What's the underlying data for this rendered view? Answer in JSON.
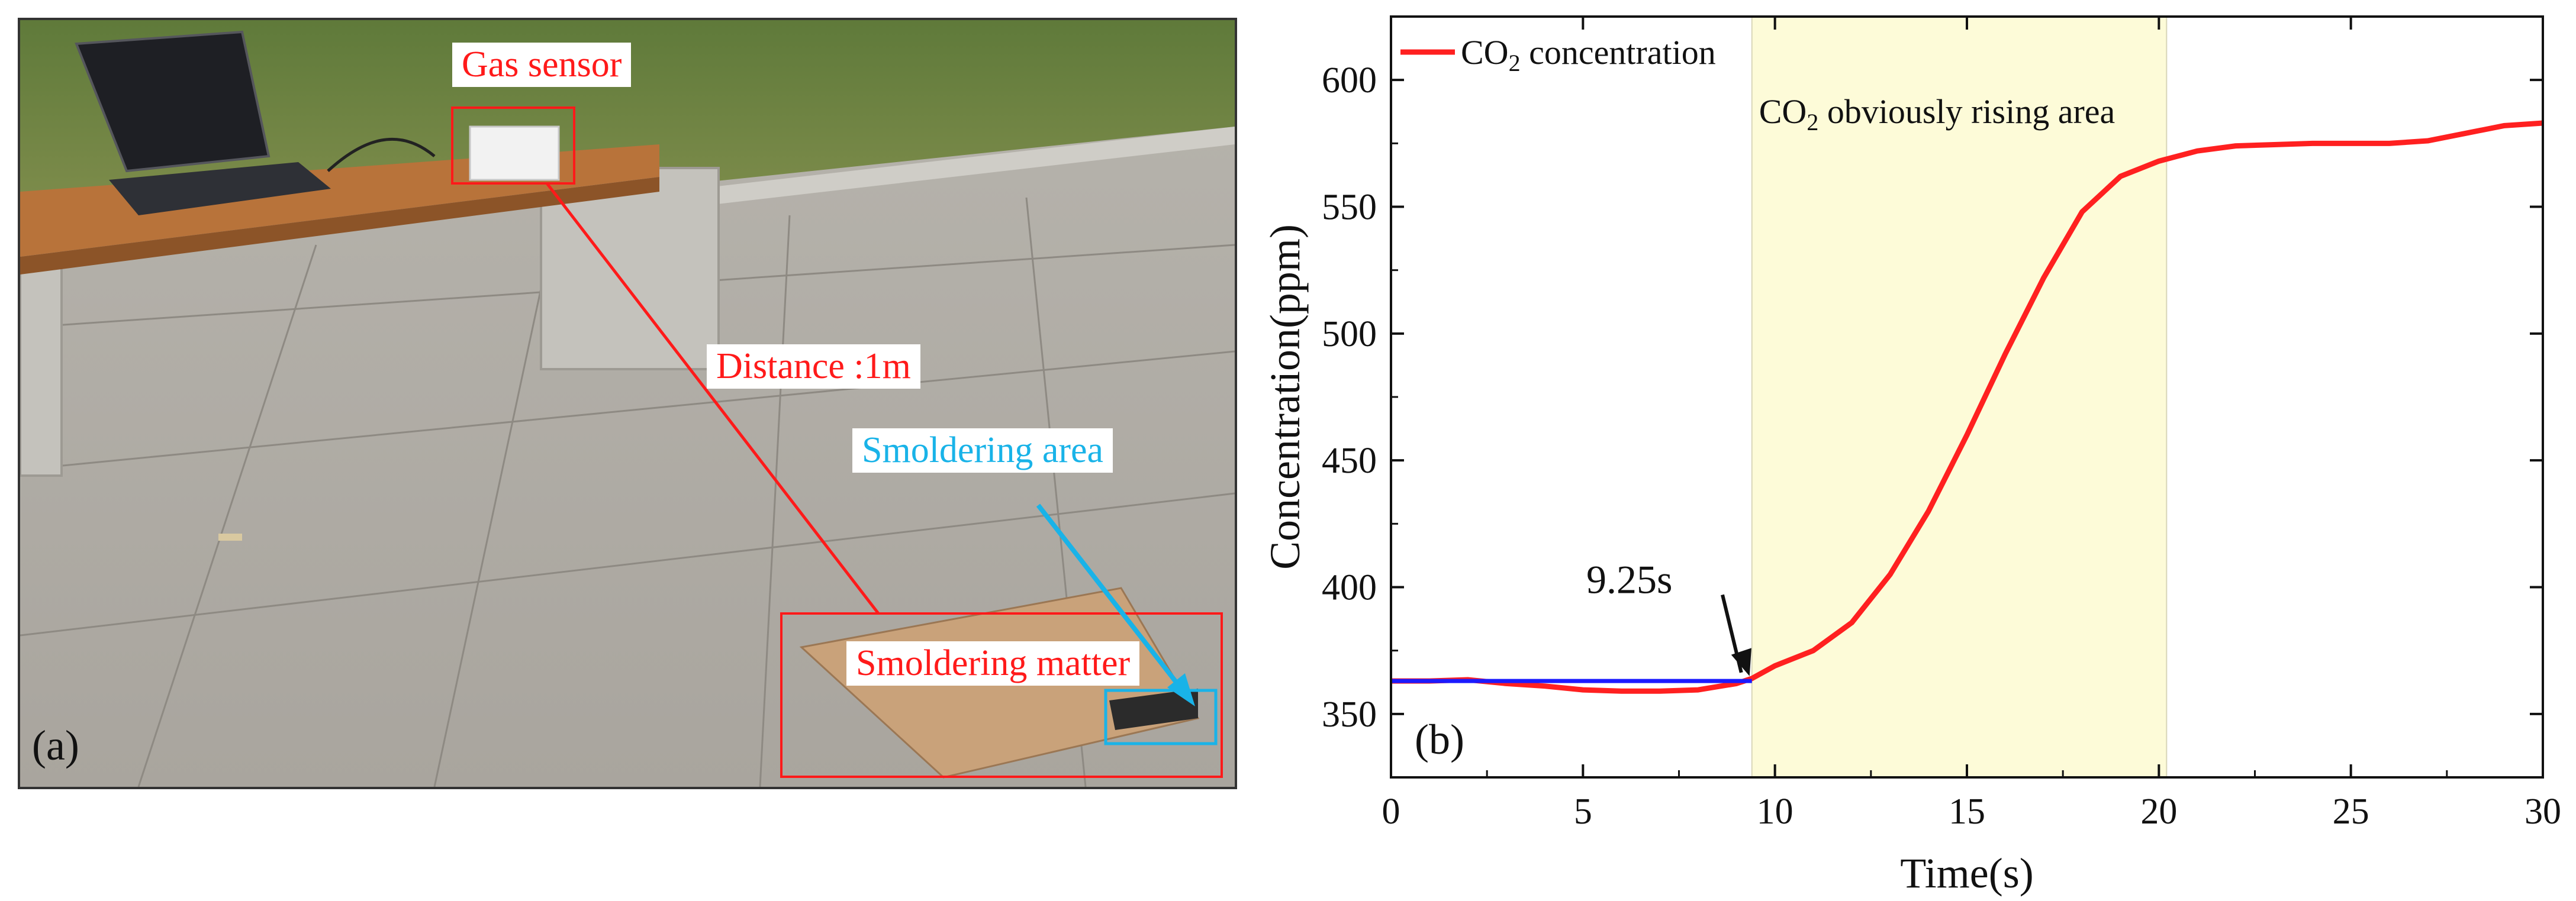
{
  "panel_a": {
    "label": "(a)",
    "annotations": {
      "gas_sensor": "Gas sensor",
      "distance": "Distance :1m",
      "smoldering_area": "Smoldering area",
      "smoldering_matter": "Smoldering matter"
    }
  },
  "panel_b": {
    "label": "(b)"
  },
  "colors": {
    "co2_line": "#ff2020",
    "baseline": "#1a1aff",
    "highlight": "#fdfbd8",
    "label_red": "#ff1a1a",
    "label_blue": "#19b3e8"
  },
  "chart_data": {
    "type": "line",
    "xlabel": "Time(s)",
    "ylabel": "Concentration(ppm)",
    "xlim": [
      0,
      30
    ],
    "ylim": [
      325,
      625
    ],
    "xticks": [
      0,
      5,
      10,
      15,
      20,
      25,
      30
    ],
    "yticks": [
      350,
      400,
      450,
      500,
      550,
      600
    ],
    "legend": {
      "prefix": "CO",
      "sub": "2",
      "suffix": " concentration",
      "position": "top-left"
    },
    "highlight_region": {
      "x_start": 9.4,
      "x_end": 20.2,
      "label_prefix": "CO",
      "label_sub": "2",
      "label_suffix": " obviously rising area"
    },
    "annotation": {
      "text": "9.25s",
      "x": 9.4,
      "y": 364
    },
    "baseline": {
      "name": "baseline",
      "x": [
        0,
        9.4
      ],
      "y": [
        363,
        363
      ]
    },
    "series": [
      {
        "name": "CO2 concentration",
        "x": [
          0,
          1,
          2,
          3,
          4,
          5,
          6,
          7,
          8,
          9,
          9.4,
          10,
          11,
          12,
          13,
          14,
          15,
          16,
          17,
          18,
          19,
          20,
          21,
          22,
          23,
          24,
          25,
          26,
          27,
          28,
          29,
          30
        ],
        "y": [
          363,
          363,
          363.5,
          362,
          361,
          359.5,
          359,
          359,
          359.5,
          362,
          364,
          369,
          375,
          386,
          405,
          430,
          460,
          492,
          522,
          548,
          562,
          568,
          572,
          574,
          574.5,
          575,
          575,
          575,
          576,
          579,
          582,
          583
        ]
      }
    ]
  }
}
